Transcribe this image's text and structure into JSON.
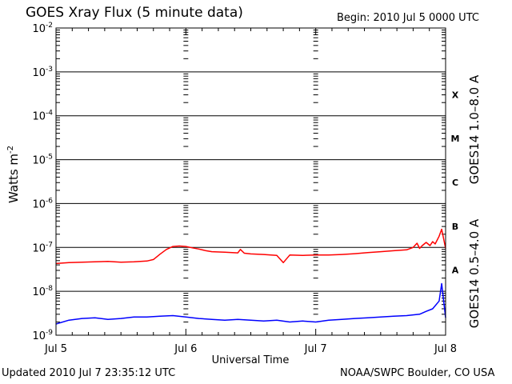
{
  "header": {
    "title": "GOES Xray Flux (5 minute data)",
    "begin": "Begin:  2010 Jul 5 0000 UTC"
  },
  "footer": {
    "updated": "Updated 2010 Jul  7 23:35:12 UTC",
    "credit": "NOAA/SWPC Boulder, CO USA"
  },
  "colors": {
    "long_channel": "#ff0000",
    "short_channel": "#0000ff",
    "grid": "#000000"
  },
  "chart_data": {
    "type": "line",
    "title": "GOES Xray Flux (5 minute data)",
    "xlabel": "Universal Time",
    "ylabel": "Watts m",
    "ylabel_superscript": "-2",
    "yscale": "log",
    "ylim": [
      1e-09,
      0.01
    ],
    "xlim": [
      0,
      3
    ],
    "x_unit": "days since 2010 Jul 5 0000 UTC",
    "x_ticks": [
      {
        "x": 0,
        "label": "Jul 5"
      },
      {
        "x": 1,
        "label": "Jul 6"
      },
      {
        "x": 2,
        "label": "Jul 7"
      },
      {
        "x": 3,
        "label": "Jul 8"
      }
    ],
    "y_ticks": [
      {
        "exp": -2,
        "base": "10",
        "sup": "-2"
      },
      {
        "exp": -3,
        "base": "10",
        "sup": "-3"
      },
      {
        "exp": -4,
        "base": "10",
        "sup": "-4"
      },
      {
        "exp": -5,
        "base": "10",
        "sup": "-5"
      },
      {
        "exp": -6,
        "base": "10",
        "sup": "-6"
      },
      {
        "exp": -7,
        "base": "10",
        "sup": "-7"
      },
      {
        "exp": -8,
        "base": "10",
        "sup": "-8"
      },
      {
        "exp": -9,
        "base": "10",
        "sup": "-9"
      }
    ],
    "flare_classes": [
      {
        "label": "X",
        "exp": -3.5
      },
      {
        "label": "M",
        "exp": -4.5
      },
      {
        "label": "C",
        "exp": -5.5
      },
      {
        "label": "B",
        "exp": -6.5
      },
      {
        "label": "A",
        "exp": -7.5
      }
    ],
    "grid": true,
    "series": [
      {
        "name": "GOES14 1.0–8.0 A",
        "color": "#ff0000",
        "x": [
          0,
          0.1,
          0.2,
          0.3,
          0.4,
          0.5,
          0.6,
          0.65,
          0.7,
          0.75,
          0.8,
          0.85,
          0.9,
          0.95,
          1.0,
          1.05,
          1.1,
          1.15,
          1.2,
          1.3,
          1.4,
          1.42,
          1.45,
          1.5,
          1.6,
          1.7,
          1.75,
          1.8,
          1.9,
          2.0,
          2.1,
          2.2,
          2.3,
          2.4,
          2.5,
          2.6,
          2.7,
          2.75,
          2.78,
          2.8,
          2.82,
          2.85,
          2.88,
          2.9,
          2.92,
          2.95,
          2.97,
          3.0
        ],
        "y": [
          4.3e-08,
          4.5e-08,
          4.6e-08,
          4.7e-08,
          4.8e-08,
          4.6e-08,
          4.7e-08,
          4.8e-08,
          4.9e-08,
          5.3e-08,
          7e-08,
          9e-08,
          1.05e-07,
          1.08e-07,
          1.05e-07,
          9.8e-08,
          9.2e-08,
          8.5e-08,
          8e-08,
          7.8e-08,
          7.5e-08,
          9e-08,
          7.4e-08,
          7.1e-08,
          6.9e-08,
          6.6e-08,
          4.5e-08,
          6.7e-08,
          6.6e-08,
          6.7e-08,
          6.7e-08,
          6.9e-08,
          7.2e-08,
          7.6e-08,
          8e-08,
          8.4e-08,
          8.8e-08,
          1e-07,
          1.25e-07,
          9.5e-08,
          1.1e-07,
          1.3e-07,
          1.1e-07,
          1.35e-07,
          1.2e-07,
          1.8e-07,
          2.6e-07,
          9.5e-08
        ]
      },
      {
        "name": "GOES14 0.5–4.0 A",
        "color": "#0000ff",
        "x": [
          0,
          0.1,
          0.2,
          0.3,
          0.4,
          0.5,
          0.6,
          0.7,
          0.8,
          0.9,
          1.0,
          1.1,
          1.2,
          1.3,
          1.4,
          1.5,
          1.6,
          1.7,
          1.8,
          1.9,
          2.0,
          2.1,
          2.2,
          2.3,
          2.4,
          2.5,
          2.6,
          2.7,
          2.8,
          2.85,
          2.9,
          2.95,
          2.97,
          3.0
        ],
        "y": [
          1.8e-09,
          2.2e-09,
          2.4e-09,
          2.5e-09,
          2.3e-09,
          2.4e-09,
          2.6e-09,
          2.6e-09,
          2.7e-09,
          2.8e-09,
          2.6e-09,
          2.4e-09,
          2.3e-09,
          2.2e-09,
          2.3e-09,
          2.2e-09,
          2.1e-09,
          2.2e-09,
          2e-09,
          2.1e-09,
          2e-09,
          2.2e-09,
          2.3e-09,
          2.4e-09,
          2.5e-09,
          2.6e-09,
          2.7e-09,
          2.8e-09,
          3e-09,
          3.5e-09,
          4e-09,
          6e-09,
          1.5e-08,
          2.5e-09
        ]
      }
    ]
  }
}
